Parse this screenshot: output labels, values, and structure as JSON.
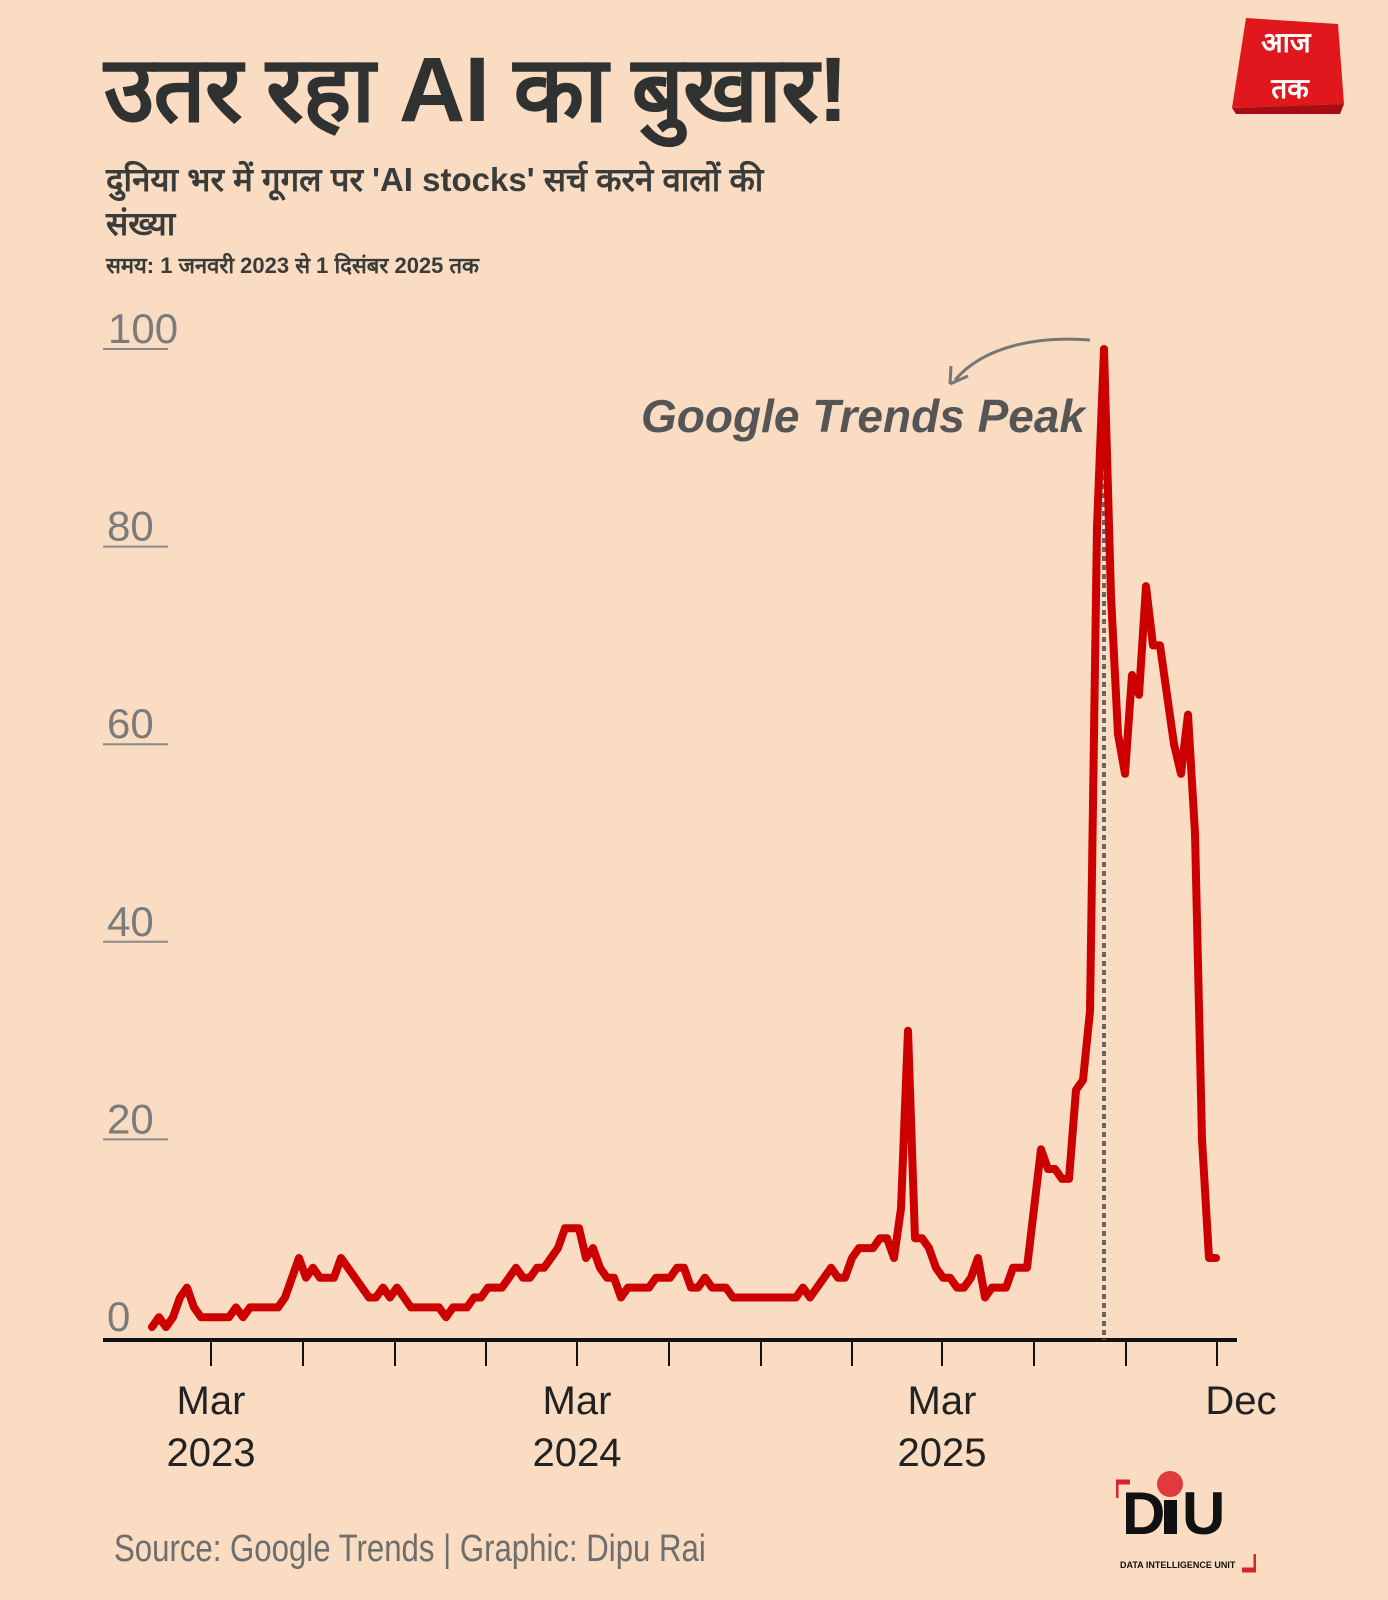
{
  "header": {
    "title": "उतर रहा AI का बुखार!",
    "subtitle": "दुनिया भर में गूगल पर 'AI stocks' सर्च करने वालों की संख्या",
    "period": "समय: 1 जनवरी 2023 से 1 दिसंबर 2025 तक"
  },
  "logo": {
    "text": "आज तक",
    "color": "#e0171d"
  },
  "footer": {
    "source": "Source: Google Trends | Graphic: Dipu Rai",
    "diu_logo": "DiU",
    "diu_tagline": "DATA INTELLIGENCE UNIT"
  },
  "chart_data": {
    "type": "line",
    "title": "उतर रहा AI का बुखार!",
    "xlabel": "",
    "ylabel": "",
    "x_range": [
      "2023-01-01",
      "2025-12-01"
    ],
    "frequency": "weekly",
    "ylim": [
      0,
      100
    ],
    "yticks": [
      "0",
      "20",
      "40",
      "60",
      "80",
      "100"
    ],
    "xticks": [
      {
        "date": "2023-03-01",
        "label": [
          "Mar",
          "2023"
        ]
      },
      {
        "date": "2023-06-01",
        "label": []
      },
      {
        "date": "2023-09-01",
        "label": []
      },
      {
        "date": "2023-12-01",
        "label": []
      },
      {
        "date": "2024-03-01",
        "label": [
          "Mar",
          "2024"
        ]
      },
      {
        "date": "2024-06-01",
        "label": []
      },
      {
        "date": "2024-09-01",
        "label": []
      },
      {
        "date": "2024-12-01",
        "label": []
      },
      {
        "date": "2025-03-01",
        "label": [
          "Mar",
          "2025"
        ]
      },
      {
        "date": "2025-06-01",
        "label": []
      },
      {
        "date": "2025-09-01",
        "label": []
      },
      {
        "date": "2025-12-01",
        "label": [
          "Dec"
        ]
      }
    ],
    "grid": false,
    "series": [
      {
        "color": "#cc0000",
        "values": [
          1,
          2,
          1,
          2,
          4,
          5,
          3,
          2,
          2,
          2,
          2,
          2,
          3,
          2,
          3,
          3,
          3,
          3,
          3,
          4,
          6,
          8,
          6,
          7,
          6,
          6,
          6,
          8,
          7,
          6,
          5,
          4,
          4,
          5,
          4,
          5,
          4,
          3,
          3,
          3,
          3,
          3,
          2,
          3,
          3,
          3,
          4,
          4,
          5,
          5,
          5,
          6,
          7,
          6,
          6,
          7,
          7,
          8,
          9,
          11,
          11,
          11,
          8,
          9,
          7,
          6,
          6,
          4,
          5,
          5,
          5,
          5,
          6,
          6,
          6,
          7,
          7,
          5,
          5,
          6,
          5,
          5,
          5,
          4,
          4,
          4,
          4,
          4,
          4,
          4,
          4,
          4,
          4,
          5,
          4,
          5,
          6,
          7,
          6,
          6,
          8,
          9,
          9,
          9,
          10,
          10,
          8,
          13,
          31,
          10,
          10,
          9,
          7,
          6,
          6,
          5,
          5,
          6,
          8,
          4,
          5,
          5,
          5,
          7,
          7,
          7,
          13,
          19,
          17,
          17,
          16,
          16,
          25,
          26,
          33,
          82,
          100,
          75,
          61,
          57,
          67,
          65,
          76,
          70,
          70,
          65,
          60,
          57,
          63,
          51,
          20,
          8,
          8
        ]
      }
    ],
    "annotation": {
      "text": "Google Trends Peak",
      "at_value": 100,
      "line_style": "dotted",
      "color": "#666666"
    }
  }
}
